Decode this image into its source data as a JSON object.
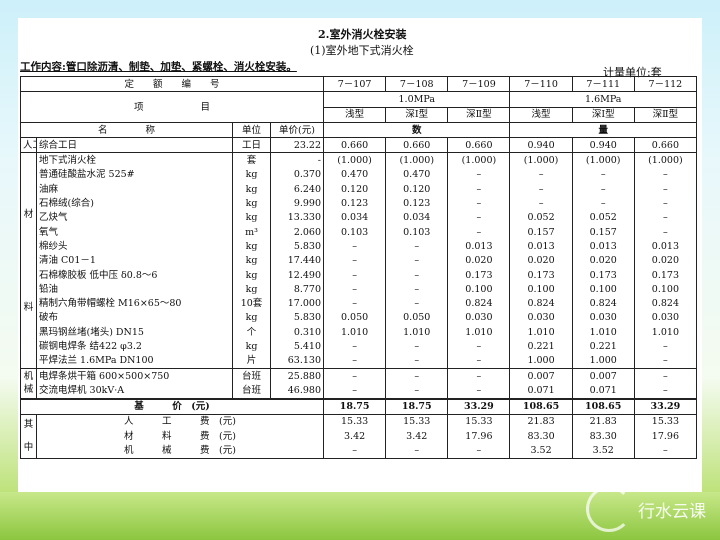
{
  "document": {
    "title": "2.室外消火栓安装",
    "subtitle": "(1)室外地下式消火栓",
    "work_content": "工作内容:管口除沥清、制垫、加垫、紧螺栓、消火栓安装。",
    "measure_unit": "计量单位:套",
    "header": {
      "quota_no_label": "定　　额　　编　　号",
      "codes": [
        "7－107",
        "7－108",
        "7－109",
        "7－110",
        "7－111",
        "7－112"
      ],
      "item_label": "项　　　　　　目",
      "pressures": [
        "1.0MPa",
        "1.6MPa"
      ],
      "types": [
        "浅型",
        "深Ⅰ型",
        "深Ⅱ型",
        "浅型",
        "深Ⅰ型",
        "深Ⅱ型"
      ],
      "name_label": "名　　　　称",
      "unit_label": "单位",
      "price_label": "单价(元)",
      "qty_label_1": "数",
      "qty_label_2": "量"
    },
    "labor": {
      "group": "人工",
      "name": "综合工日",
      "unit": "工日",
      "price": "23.22",
      "values": [
        "0.660",
        "0.660",
        "0.660",
        "0.940",
        "0.940",
        "0.660"
      ]
    },
    "materials_group": [
      "材",
      "料"
    ],
    "materials": [
      {
        "name": "地下式消火栓",
        "unit": "套",
        "price": "-",
        "values": [
          "(1.000)",
          "(1.000)",
          "(1.000)",
          "(1.000)",
          "(1.000)",
          "(1.000)"
        ]
      },
      {
        "name": "普通硅酸盐水泥 525#",
        "unit": "kg",
        "price": "0.370",
        "values": [
          "0.470",
          "0.470",
          "–",
          "–",
          "–",
          "–"
        ]
      },
      {
        "name": "油麻",
        "unit": "kg",
        "price": "6.240",
        "values": [
          "0.120",
          "0.120",
          "–",
          "–",
          "–",
          "–"
        ]
      },
      {
        "name": "石棉绒(综合)",
        "unit": "kg",
        "price": "9.990",
        "values": [
          "0.123",
          "0.123",
          "–",
          "–",
          "–",
          "–"
        ]
      },
      {
        "name": "乙炔气",
        "unit": "kg",
        "price": "13.330",
        "values": [
          "0.034",
          "0.034",
          "–",
          "0.052",
          "0.052",
          "–"
        ]
      },
      {
        "name": "氧气",
        "unit": "m³",
        "price": "2.060",
        "values": [
          "0.103",
          "0.103",
          "–",
          "0.157",
          "0.157",
          "–"
        ]
      },
      {
        "name": "棉纱头",
        "unit": "kg",
        "price": "5.830",
        "values": [
          "–",
          "–",
          "0.013",
          "0.013",
          "0.013",
          "0.013"
        ]
      },
      {
        "name": "清油 C01－1",
        "unit": "kg",
        "price": "17.440",
        "values": [
          "–",
          "–",
          "0.020",
          "0.020",
          "0.020",
          "0.020"
        ]
      },
      {
        "name": "石棉橡胶板 低中压 δ0.8～6",
        "unit": "kg",
        "price": "12.490",
        "values": [
          "–",
          "–",
          "0.173",
          "0.173",
          "0.173",
          "0.173"
        ]
      },
      {
        "name": "铅油",
        "unit": "kg",
        "price": "8.770",
        "values": [
          "–",
          "–",
          "0.100",
          "0.100",
          "0.100",
          "0.100"
        ]
      },
      {
        "name": "精制六角带帽螺栓 M16×65～80",
        "unit": "10套",
        "price": "17.000",
        "values": [
          "–",
          "–",
          "0.824",
          "0.824",
          "0.824",
          "0.824"
        ]
      },
      {
        "name": "破布",
        "unit": "kg",
        "price": "5.830",
        "values": [
          "0.050",
          "0.050",
          "0.030",
          "0.030",
          "0.030",
          "0.030"
        ]
      },
      {
        "name": "黑玛钢丝堵(堵头) DN15",
        "unit": "个",
        "price": "0.310",
        "values": [
          "1.010",
          "1.010",
          "1.010",
          "1.010",
          "1.010",
          "1.010"
        ]
      },
      {
        "name": "碳钢电焊条 结422 φ3.2",
        "unit": "kg",
        "price": "5.410",
        "values": [
          "–",
          "–",
          "–",
          "0.221",
          "0.221",
          "–"
        ]
      },
      {
        "name": "平焊法兰 1.6MPa DN100",
        "unit": "片",
        "price": "63.130",
        "values": [
          "–",
          "–",
          "–",
          "1.000",
          "1.000",
          "–"
        ]
      }
    ],
    "machinery_group": [
      "机",
      "械"
    ],
    "machinery": [
      {
        "name": "电焊条烘干箱 600×500×750",
        "unit": "台班",
        "price": "25.880",
        "values": [
          "–",
          "–",
          "–",
          "0.007",
          "0.007",
          "–"
        ]
      },
      {
        "name": "交流电焊机 30kV·A",
        "unit": "台班",
        "price": "46.980",
        "values": [
          "–",
          "–",
          "–",
          "0.071",
          "0.071",
          "–"
        ]
      }
    ],
    "base_price": {
      "label": "基　　　价　(元)",
      "values": [
        "18.75",
        "18.75",
        "33.29",
        "108.65",
        "108.65",
        "33.29"
      ]
    },
    "breakdown_group": [
      "其",
      "中"
    ],
    "breakdown": [
      {
        "label": "人　　　工　　　费　(元)",
        "values": [
          "15.33",
          "15.33",
          "15.33",
          "21.83",
          "21.83",
          "15.33"
        ]
      },
      {
        "label": "材　　　料　　　费　(元)",
        "values": [
          "3.42",
          "3.42",
          "17.96",
          "83.30",
          "83.30",
          "17.96"
        ]
      },
      {
        "label": "机　　　械　　　费　(元)",
        "values": [
          "–",
          "–",
          "–",
          "3.52",
          "3.52",
          "–"
        ]
      }
    ]
  },
  "logo": {
    "text": "行水云课"
  }
}
